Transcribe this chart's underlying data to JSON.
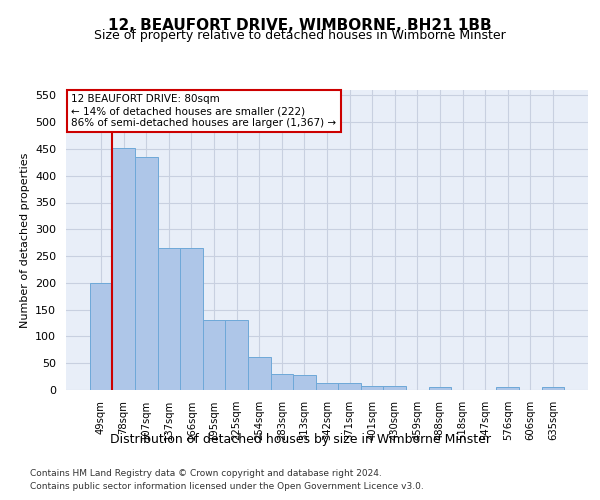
{
  "title": "12, BEAUFORT DRIVE, WIMBORNE, BH21 1BB",
  "subtitle": "Size of property relative to detached houses in Wimborne Minster",
  "xlabel": "Distribution of detached houses by size in Wimborne Minster",
  "ylabel": "Number of detached properties",
  "footer_line1": "Contains HM Land Registry data © Crown copyright and database right 2024.",
  "footer_line2": "Contains public sector information licensed under the Open Government Licence v3.0.",
  "annotation_line1": "12 BEAUFORT DRIVE: 80sqm",
  "annotation_line2": "← 14% of detached houses are smaller (222)",
  "annotation_line3": "86% of semi-detached houses are larger (1,367) →",
  "bar_values": [
    200,
    452,
    435,
    265,
    265,
    130,
    130,
    62,
    30,
    28,
    14,
    14,
    8,
    7,
    0,
    5,
    0,
    0,
    5,
    0,
    5
  ],
  "bar_categories": [
    "49sqm",
    "78sqm",
    "107sqm",
    "137sqm",
    "166sqm",
    "195sqm",
    "225sqm",
    "254sqm",
    "283sqm",
    "313sqm",
    "342sqm",
    "371sqm",
    "401sqm",
    "430sqm",
    "459sqm",
    "488sqm",
    "518sqm",
    "547sqm",
    "576sqm",
    "606sqm",
    "635sqm"
  ],
  "bar_color": "#aec6e8",
  "bar_edge_color": "#6ea8d8",
  "vline_color": "#cc0000",
  "annotation_box_color": "#cc0000",
  "grid_color": "#c8d0e0",
  "bg_color": "#e8eef8",
  "ylim": [
    0,
    560
  ],
  "yticks": [
    0,
    50,
    100,
    150,
    200,
    250,
    300,
    350,
    400,
    450,
    500,
    550
  ],
  "title_fontsize": 11,
  "subtitle_fontsize": 9,
  "ylabel_fontsize": 8,
  "xlabel_fontsize": 9
}
